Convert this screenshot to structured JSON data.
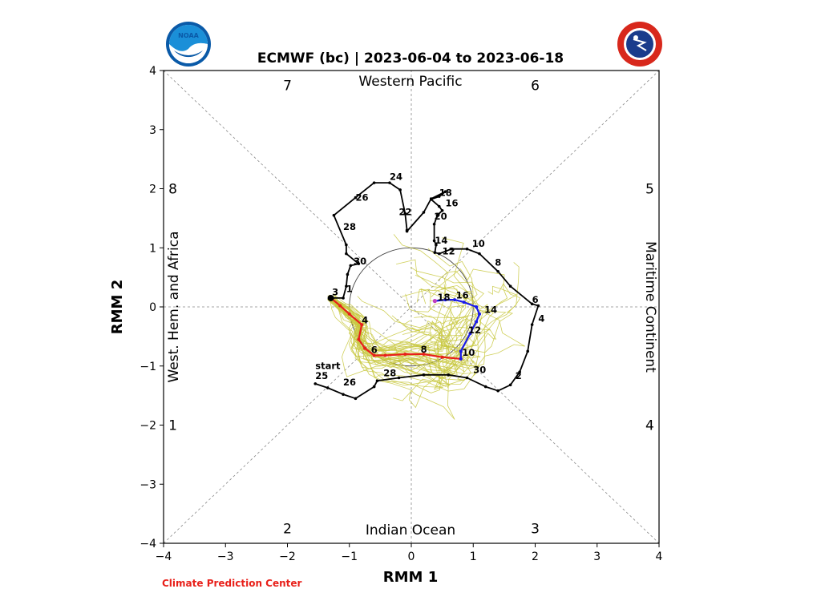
{
  "title": "ECMWF (bc) | 2023-06-04 to 2023-06-18",
  "credit": "Climate Prediction Center",
  "colors": {
    "obs": "#000000",
    "week1": "#e8201a",
    "week2": "#1a1ae8",
    "tail": "#c040c0",
    "ensemble": "#c8c840",
    "credit": "#e8201a",
    "grid": "#888888"
  },
  "logos": {
    "left": "noaa-logo",
    "right": "nws-logo"
  },
  "chart_data": {
    "type": "line",
    "xlabel": "RMM 1",
    "ylabel": "RMM 2",
    "xlim": [
      -4,
      4
    ],
    "ylim": [
      -4,
      4
    ],
    "xticks": [
      "−4",
      "−3",
      "−2",
      "−1",
      "0",
      "1",
      "2",
      "3",
      "4"
    ],
    "yticks": [
      "−4",
      "−3",
      "−2",
      "−1",
      "0",
      "1",
      "2",
      "3",
      "4"
    ],
    "region_labels": {
      "top": "Western Pacific",
      "bottom": "Indian Ocean",
      "left": "West. Hem. and Africa",
      "right": "Maritime Continent"
    },
    "phase_labels": [
      {
        "text": "7",
        "x": -2.0,
        "y": 3.75
      },
      {
        "text": "6",
        "x": 2.0,
        "y": 3.75
      },
      {
        "text": "8",
        "x": -3.85,
        "y": 2.0
      },
      {
        "text": "5",
        "x": 3.85,
        "y": 2.0
      },
      {
        "text": "1",
        "x": -3.85,
        "y": -2.0
      },
      {
        "text": "4",
        "x": 3.85,
        "y": -2.0
      },
      {
        "text": "2",
        "x": -2.0,
        "y": -3.75
      },
      {
        "text": "3",
        "x": 2.0,
        "y": -3.75
      }
    ],
    "observed": {
      "points": [
        [
          -1.55,
          -1.3
        ],
        [
          -1.35,
          -1.37
        ],
        [
          -1.1,
          -1.48
        ],
        [
          -0.9,
          -1.55
        ],
        [
          -0.6,
          -1.35
        ],
        [
          -0.55,
          -1.25
        ],
        [
          -0.2,
          -1.2
        ],
        [
          0.2,
          -1.15
        ],
        [
          0.6,
          -1.15
        ],
        [
          0.9,
          -1.2
        ],
        [
          1.2,
          -1.35
        ],
        [
          1.4,
          -1.42
        ],
        [
          1.6,
          -1.32
        ],
        [
          1.75,
          -1.1
        ],
        [
          1.88,
          -0.75
        ],
        [
          1.95,
          -0.3
        ],
        [
          2.05,
          0.02
        ],
        [
          1.95,
          0.05
        ],
        [
          1.6,
          0.35
        ],
        [
          1.4,
          0.6
        ],
        [
          1.1,
          0.9
        ],
        [
          0.9,
          0.98
        ],
        [
          0.65,
          0.98
        ],
        [
          0.45,
          0.9
        ],
        [
          0.38,
          0.92
        ],
        [
          0.4,
          1.05
        ],
        [
          0.37,
          1.12
        ],
        [
          0.37,
          1.4
        ],
        [
          0.42,
          1.55
        ],
        [
          0.5,
          1.63
        ],
        [
          0.45,
          1.7
        ],
        [
          0.32,
          1.82
        ],
        [
          0.45,
          1.87
        ],
        [
          0.55,
          1.95
        ],
        [
          0.32,
          1.83
        ],
        [
          0.2,
          1.6
        ],
        [
          -0.07,
          1.28
        ],
        [
          -0.07,
          1.3
        ],
        [
          -0.1,
          1.58
        ],
        [
          -0.18,
          1.98
        ],
        [
          -0.35,
          2.1
        ],
        [
          -0.6,
          2.1
        ],
        [
          -0.9,
          1.85
        ],
        [
          -1.25,
          1.55
        ],
        [
          -1.05,
          1.05
        ],
        [
          -1.05,
          0.9
        ],
        [
          -0.85,
          0.73
        ],
        [
          -0.98,
          0.7
        ],
        [
          -1.03,
          0.55
        ],
        [
          -1.05,
          0.35
        ],
        [
          -1.1,
          0.15
        ],
        [
          -1.3,
          0.15
        ]
      ],
      "labels": [
        {
          "text": "start",
          "x": -1.55,
          "y": -1.05
        },
        {
          "text": "25",
          "x": -1.55,
          "y": -1.22
        },
        {
          "text": "26",
          "x": -1.1,
          "y": -1.33
        },
        {
          "text": "28",
          "x": -0.45,
          "y": -1.17
        },
        {
          "text": "30",
          "x": 1.0,
          "y": -1.12
        },
        {
          "text": "2",
          "x": 1.68,
          "y": -1.22
        },
        {
          "text": "4",
          "x": 2.05,
          "y": -0.25
        },
        {
          "text": "6",
          "x": 1.95,
          "y": 0.07
        },
        {
          "text": "8",
          "x": 1.35,
          "y": 0.7
        },
        {
          "text": "10",
          "x": 0.98,
          "y": 1.02
        },
        {
          "text": "12",
          "x": 0.5,
          "y": 0.89
        },
        {
          "text": "14",
          "x": 0.38,
          "y": 1.07
        },
        {
          "text": "16",
          "x": 0.55,
          "y": 1.7
        },
        {
          "text": "18",
          "x": 0.45,
          "y": 1.88
        },
        {
          "text": "20",
          "x": 0.37,
          "y": 1.48
        },
        {
          "text": "22",
          "x": -0.2,
          "y": 1.55
        },
        {
          "text": "24",
          "x": -0.35,
          "y": 2.15
        },
        {
          "text": "26",
          "x": -0.9,
          "y": 1.8
        },
        {
          "text": "28",
          "x": -1.1,
          "y": 1.3
        },
        {
          "text": "30",
          "x": -0.93,
          "y": 0.72
        },
        {
          "text": "1",
          "x": -1.05,
          "y": 0.25
        },
        {
          "text": "3",
          "x": -1.28,
          "y": 0.2
        }
      ]
    },
    "forecast_week1": {
      "points": [
        [
          -1.3,
          0.15
        ],
        [
          -1.15,
          0.02
        ],
        [
          -1.0,
          -0.12
        ],
        [
          -0.8,
          -0.3
        ],
        [
          -0.85,
          -0.55
        ],
        [
          -0.75,
          -0.7
        ],
        [
          -0.6,
          -0.82
        ],
        [
          -0.42,
          -0.82
        ],
        [
          -0.1,
          -0.8
        ],
        [
          0.2,
          -0.8
        ],
        [
          0.5,
          -0.85
        ],
        [
          0.8,
          -0.88
        ]
      ],
      "labels": [
        {
          "text": "4",
          "x": -0.8,
          "y": -0.28
        },
        {
          "text": "6",
          "x": -0.65,
          "y": -0.78
        },
        {
          "text": "8",
          "x": 0.15,
          "y": -0.77
        }
      ]
    },
    "forecast_week2": {
      "points": [
        [
          0.8,
          -0.88
        ],
        [
          0.8,
          -0.75
        ],
        [
          0.95,
          -0.45
        ],
        [
          1.05,
          -0.25
        ],
        [
          1.1,
          -0.12
        ],
        [
          1.05,
          0.0
        ],
        [
          0.85,
          0.08
        ],
        [
          0.7,
          0.12
        ],
        [
          0.55,
          0.12
        ],
        [
          0.38,
          0.1
        ]
      ],
      "labels": [
        {
          "text": "10",
          "x": 0.82,
          "y": -0.83
        },
        {
          "text": "12",
          "x": 0.92,
          "y": -0.45
        },
        {
          "text": "14",
          "x": 1.18,
          "y": -0.1
        },
        {
          "text": "16",
          "x": 0.72,
          "y": 0.14
        },
        {
          "text": "18",
          "x": 0.42,
          "y": 0.11
        }
      ]
    }
  }
}
